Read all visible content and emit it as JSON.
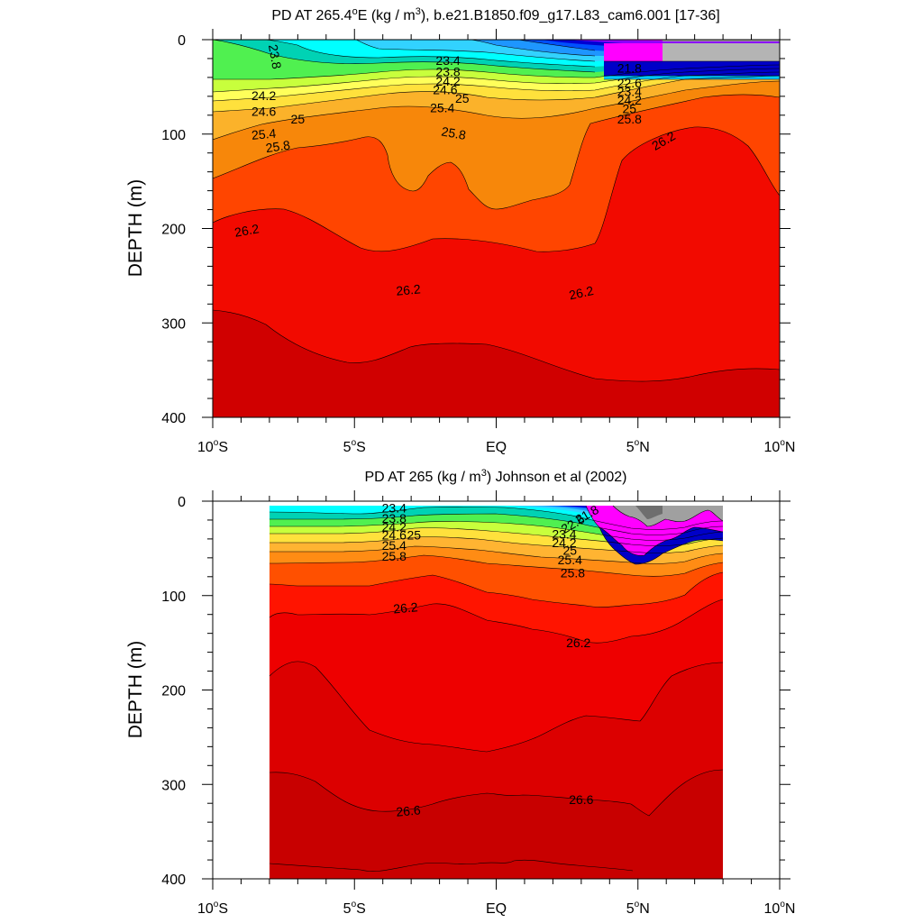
{
  "chart_data": [
    {
      "type": "filled-contour",
      "title": "PD AT 265.4°E (kg / m³), b.e21.B1850.f09_g17.L83_cam6.001 [17-36]",
      "title_parts": {
        "before_sup": "PD AT 265.4",
        "sup1": "o",
        "mid": "E (kg / m",
        "sup2": "3",
        "after_sup": "), b.e21.B1850.f09_g17.L83_cam6.001 [17-36]"
      },
      "ylabel": "DEPTH (m)",
      "xlim": [
        -10,
        10
      ],
      "ylim": [
        0,
        400
      ],
      "y_ticks": [
        "0",
        "100",
        "200",
        "300",
        "400"
      ],
      "x_ticks": [
        {
          "value": -10,
          "num": "10",
          "deg": "o",
          "hemi": "S"
        },
        {
          "value": -5,
          "num": "5",
          "deg": "o",
          "hemi": "S"
        },
        {
          "value": 0,
          "num": "EQ",
          "deg": "",
          "hemi": ""
        },
        {
          "value": 5,
          "num": "5",
          "deg": "o",
          "hemi": "N"
        },
        {
          "value": 10,
          "num": "10",
          "deg": "o",
          "hemi": "N"
        }
      ],
      "data_extent_lat": [
        -10,
        10
      ],
      "contour_labels": [
        {
          "text": "23.8",
          "lat": -7.8,
          "depth": 18,
          "angle": 80
        },
        {
          "text": "23.4",
          "lat": -1.7,
          "depth": 22,
          "angle": 0
        },
        {
          "text": "23.8",
          "lat": -1.7,
          "depth": 34,
          "angle": 0
        },
        {
          "text": "24.2",
          "lat": -1.7,
          "depth": 44,
          "angle": 0
        },
        {
          "text": "24.6",
          "lat": -1.8,
          "depth": 53,
          "angle": 0
        },
        {
          "text": "25",
          "lat": -1.2,
          "depth": 62,
          "angle": 0
        },
        {
          "text": "25.4",
          "lat": -1.9,
          "depth": 72,
          "angle": 0
        },
        {
          "text": "25.8",
          "lat": -1.5,
          "depth": 99,
          "angle": 10
        },
        {
          "text": "24.2",
          "lat": -8.2,
          "depth": 59,
          "angle": 0
        },
        {
          "text": "24.6",
          "lat": -8.2,
          "depth": 76,
          "angle": 0
        },
        {
          "text": "25",
          "lat": -7.0,
          "depth": 84,
          "angle": 0
        },
        {
          "text": "25.4",
          "lat": -8.2,
          "depth": 100,
          "angle": -5
        },
        {
          "text": "25.8",
          "lat": -7.7,
          "depth": 113,
          "angle": -8
        },
        {
          "text": "21.8",
          "lat": 4.7,
          "depth": 30,
          "angle": 0
        },
        {
          "text": "22.6",
          "lat": 4.7,
          "depth": 46,
          "angle": 0
        },
        {
          "text": "23.4",
          "lat": 4.7,
          "depth": 55,
          "angle": 0
        },
        {
          "text": "24.2",
          "lat": 4.7,
          "depth": 64,
          "angle": 0
        },
        {
          "text": "25",
          "lat": 4.7,
          "depth": 73,
          "angle": 0
        },
        {
          "text": "25.8",
          "lat": 4.7,
          "depth": 84,
          "angle": 0
        },
        {
          "text": "26.2",
          "lat": 5.9,
          "depth": 107,
          "angle": -30
        },
        {
          "text": "26.2",
          "lat": -8.8,
          "depth": 202,
          "angle": -10
        },
        {
          "text": "26.2",
          "lat": -3.1,
          "depth": 265,
          "angle": -5
        },
        {
          "text": "26.2",
          "lat": 3.0,
          "depth": 268,
          "angle": -12
        }
      ]
    },
    {
      "type": "filled-contour",
      "title": "PD AT 265 (kg / m³) Johnson et al (2002)",
      "title_parts": {
        "before_sup": "PD AT 265 (kg / m",
        "sup1": "3",
        "mid": ") Johnson et al (2002)",
        "sup2": "",
        "after_sup": ""
      },
      "ylabel": "DEPTH (m)",
      "xlim": [
        -10,
        10
      ],
      "ylim": [
        0,
        400
      ],
      "y_ticks": [
        "0",
        "100",
        "200",
        "300",
        "400"
      ],
      "x_ticks": [
        {
          "value": -10,
          "num": "10",
          "deg": "o",
          "hemi": "S"
        },
        {
          "value": -5,
          "num": "5",
          "deg": "o",
          "hemi": "S"
        },
        {
          "value": 0,
          "num": "EQ",
          "deg": "",
          "hemi": ""
        },
        {
          "value": 5,
          "num": "5",
          "deg": "o",
          "hemi": "N"
        },
        {
          "value": 10,
          "num": "10",
          "deg": "o",
          "hemi": "N"
        }
      ],
      "data_extent_lat": [
        -8,
        8
      ],
      "contour_labels": [
        {
          "text": "23.4",
          "lat": -3.6,
          "depth": 7,
          "angle": 0
        },
        {
          "text": "23.8",
          "lat": -3.6,
          "depth": 18,
          "angle": 0
        },
        {
          "text": "24.2",
          "lat": -3.6,
          "depth": 27,
          "angle": 0
        },
        {
          "text": "24.6",
          "lat": -3.6,
          "depth": 36,
          "angle": 0
        },
        {
          "text": "25",
          "lat": -2.9,
          "depth": 36,
          "angle": 0
        },
        {
          "text": "25.4",
          "lat": -3.6,
          "depth": 47,
          "angle": 0
        },
        {
          "text": "25.8",
          "lat": -3.6,
          "depth": 58,
          "angle": 0
        },
        {
          "text": "21.8",
          "lat": 3.2,
          "depth": 14,
          "angle": -30
        },
        {
          "text": "22.6",
          "lat": 2.7,
          "depth": 24,
          "angle": -30
        },
        {
          "text": "23.4",
          "lat": 2.4,
          "depth": 35,
          "angle": 0
        },
        {
          "text": "24.2",
          "lat": 2.4,
          "depth": 44,
          "angle": 0
        },
        {
          "text": "25",
          "lat": 2.6,
          "depth": 52,
          "angle": 0
        },
        {
          "text": "25.4",
          "lat": 2.6,
          "depth": 62,
          "angle": 0
        },
        {
          "text": "25.8",
          "lat": 2.7,
          "depth": 76,
          "angle": 0
        },
        {
          "text": "26.2",
          "lat": -3.2,
          "depth": 113,
          "angle": -5
        },
        {
          "text": "26.2",
          "lat": 2.9,
          "depth": 150,
          "angle": 0
        },
        {
          "text": "26.6",
          "lat": -3.1,
          "depth": 328,
          "angle": -5
        },
        {
          "text": "26.6",
          "lat": 3.0,
          "depth": 316,
          "angle": 0
        }
      ]
    }
  ]
}
